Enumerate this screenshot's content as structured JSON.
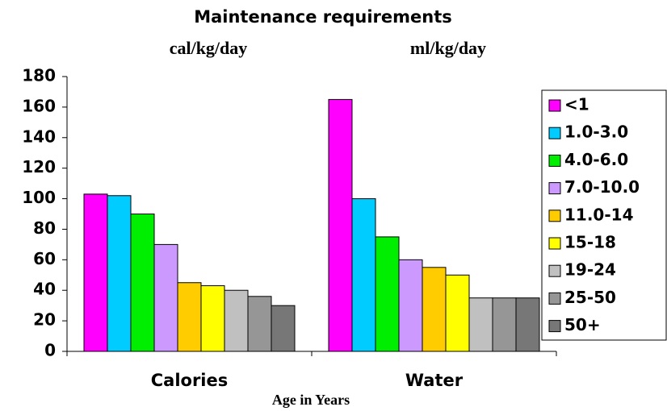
{
  "chart_data": {
    "type": "bar",
    "title": "Maintenance requirements",
    "annotations": [
      "cal/kg/day",
      "ml/kg/day"
    ],
    "xlabel": "Age in Years",
    "categories": [
      "Calories",
      "Water"
    ],
    "series": [
      {
        "name": "<1",
        "color": "#ff00ff",
        "values": [
          103,
          165
        ]
      },
      {
        "name": "1.0-3.0",
        "color": "#00ccff",
        "values": [
          102,
          100
        ]
      },
      {
        "name": "4.0-6.0",
        "color": "#00ee00",
        "values": [
          90,
          75
        ]
      },
      {
        "name": "7.0-10.0",
        "color": "#cc99ff",
        "values": [
          70,
          60
        ]
      },
      {
        "name": "11.0-14",
        "color": "#ffcc00",
        "values": [
          45,
          55
        ]
      },
      {
        "name": "15-18",
        "color": "#ffff00",
        "values": [
          43,
          50
        ]
      },
      {
        "name": "19-24",
        "color": "#c0c0c0",
        "values": [
          40,
          35
        ]
      },
      {
        "name": "25-50",
        "color": "#969696",
        "values": [
          36,
          35
        ]
      },
      {
        "name": "50+",
        "color": "#777777",
        "values": [
          30,
          35
        ]
      }
    ],
    "ylim": [
      0,
      180
    ],
    "yticks": [
      0,
      20,
      40,
      60,
      80,
      100,
      120,
      140,
      160,
      180
    ],
    "legend": "right"
  }
}
